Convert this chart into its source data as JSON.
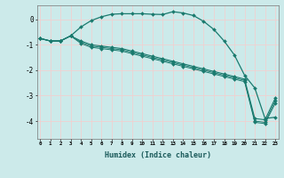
{
  "xlabel": "Humidex (Indice chaleur)",
  "bg_color": "#cceaea",
  "grid_color": "#f0d0d0",
  "line_color": "#1a7a6e",
  "x_ticks": [
    0,
    1,
    2,
    3,
    4,
    5,
    6,
    7,
    8,
    9,
    10,
    11,
    12,
    13,
    14,
    15,
    16,
    17,
    18,
    19,
    20,
    21,
    22,
    23
  ],
  "y_ticks": [
    -4,
    -3,
    -2,
    -1,
    0
  ],
  "xlim": [
    -0.3,
    23.3
  ],
  "ylim": [
    -4.7,
    0.55
  ],
  "series": {
    "curve1_x": [
      0,
      1,
      2,
      3,
      4,
      5,
      6,
      7,
      8,
      9,
      10,
      11,
      12,
      13,
      14,
      15,
      16,
      17,
      18,
      19,
      20,
      21,
      22,
      23
    ],
    "curve1_y": [
      -0.75,
      -0.85,
      -0.85,
      -0.65,
      -0.3,
      -0.05,
      0.1,
      0.2,
      0.22,
      0.22,
      0.22,
      0.2,
      0.19,
      0.3,
      0.25,
      0.15,
      -0.08,
      -0.4,
      -0.85,
      -1.4,
      -2.2,
      -2.7,
      -3.9,
      -3.85
    ],
    "curve2_x": [
      0,
      1,
      2,
      3,
      4,
      5,
      6,
      7,
      8,
      9,
      10,
      11,
      12,
      13,
      14,
      15,
      16,
      17,
      18,
      19,
      20,
      21,
      22,
      23
    ],
    "curve2_y": [
      -0.75,
      -0.85,
      -0.85,
      -0.65,
      -0.85,
      -1.0,
      -1.05,
      -1.1,
      -1.15,
      -1.25,
      -1.35,
      -1.45,
      -1.55,
      -1.65,
      -1.75,
      -1.85,
      -1.95,
      -2.05,
      -2.15,
      -2.25,
      -2.35,
      -3.9,
      -3.95,
      -3.1
    ],
    "curve3_x": [
      0,
      1,
      2,
      3,
      4,
      5,
      6,
      7,
      8,
      9,
      10,
      11,
      12,
      13,
      14,
      15,
      16,
      17,
      18,
      19,
      20,
      21,
      22,
      23
    ],
    "curve3_y": [
      -0.75,
      -0.85,
      -0.85,
      -0.65,
      -0.9,
      -1.05,
      -1.1,
      -1.15,
      -1.2,
      -1.3,
      -1.4,
      -1.5,
      -1.6,
      -1.7,
      -1.8,
      -1.9,
      -2.0,
      -2.1,
      -2.2,
      -2.3,
      -2.4,
      -4.0,
      -4.05,
      -3.2
    ],
    "curve4_x": [
      0,
      1,
      2,
      3,
      4,
      5,
      6,
      7,
      8,
      9,
      10,
      11,
      12,
      13,
      14,
      15,
      16,
      17,
      18,
      19,
      20,
      21,
      22,
      23
    ],
    "curve4_y": [
      -0.75,
      -0.85,
      -0.85,
      -0.65,
      -0.95,
      -1.1,
      -1.15,
      -1.2,
      -1.25,
      -1.35,
      -1.45,
      -1.55,
      -1.65,
      -1.75,
      -1.85,
      -1.95,
      -2.05,
      -2.15,
      -2.25,
      -2.35,
      -2.45,
      -4.05,
      -4.1,
      -3.3
    ]
  }
}
